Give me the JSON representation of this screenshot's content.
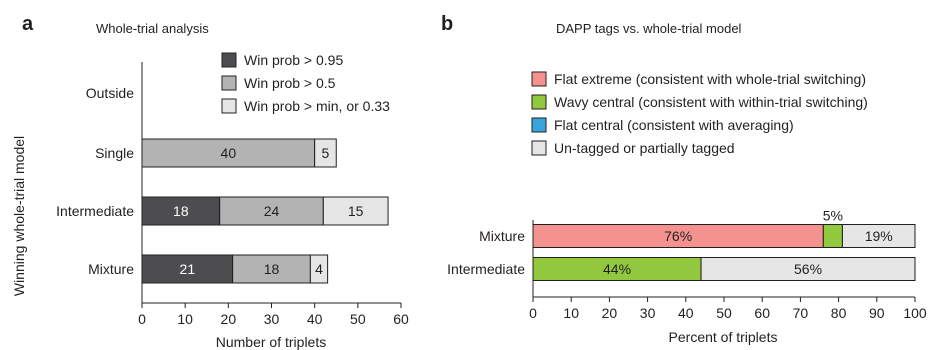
{
  "panels": {
    "a": {
      "letter": "a",
      "title": "Whole-trial analysis",
      "ylabel": "Winning whole-trial model",
      "xlabel": "Number of triplets"
    },
    "b": {
      "letter": "b",
      "title": "DAPP tags vs. whole-trial model",
      "xlabel": "Percent of triplets"
    }
  },
  "chart_data": [
    {
      "type": "bar",
      "orientation": "horizontal",
      "stacked": true,
      "title": "Whole-trial analysis",
      "xlabel": "Number of triplets",
      "ylabel": "Winning whole-trial model",
      "categories": [
        "Outside",
        "Single",
        "Intermediate",
        "Mixture"
      ],
      "xlim": [
        0,
        60
      ],
      "xticks": [
        0,
        10,
        20,
        30,
        40,
        50,
        60
      ],
      "legend_position": "top-right",
      "series": [
        {
          "name": "Win prob > 0.95",
          "color": "#4d4d4f",
          "values": [
            0,
            0,
            18,
            21
          ],
          "labels": [
            "",
            "",
            "18",
            "21"
          ]
        },
        {
          "name": "Win prob > 0.5",
          "color": "#b3b3b3",
          "values": [
            0,
            40,
            24,
            18
          ],
          "labels": [
            "",
            "40",
            "24",
            "18"
          ]
        },
        {
          "name": "Win prob > min, or 0.33",
          "color": "#e6e6e6",
          "values": [
            0,
            5,
            15,
            4
          ],
          "labels": [
            "",
            "5",
            "15",
            "4"
          ]
        }
      ]
    },
    {
      "type": "bar",
      "orientation": "horizontal",
      "stacked": true,
      "title": "DAPP tags vs. whole-trial model",
      "xlabel": "Percent of triplets",
      "categories": [
        "Mixture",
        "Intermediate"
      ],
      "xlim": [
        0,
        100
      ],
      "xticks": [
        0,
        10,
        20,
        30,
        40,
        50,
        60,
        70,
        80,
        90,
        100
      ],
      "legend_position": "top",
      "series": [
        {
          "name": "Flat extreme (consistent with whole-trial switching)",
          "color": "#f4928f",
          "values": [
            76,
            0
          ],
          "labels": [
            "76%",
            ""
          ]
        },
        {
          "name": "Wavy central (consistent with within-trial switching)",
          "color": "#92c83e",
          "values": [
            5,
            44
          ],
          "labels": [
            "5%",
            "44%"
          ]
        },
        {
          "name": "Flat central (consistent with averaging)",
          "color": "#3aa4dc",
          "values": [
            0,
            0
          ],
          "labels": [
            "",
            ""
          ]
        },
        {
          "name": "Un-tagged or partially tagged",
          "color": "#e6e6e6",
          "values": [
            19,
            56
          ],
          "labels": [
            "19%",
            "56%"
          ]
        }
      ]
    }
  ]
}
